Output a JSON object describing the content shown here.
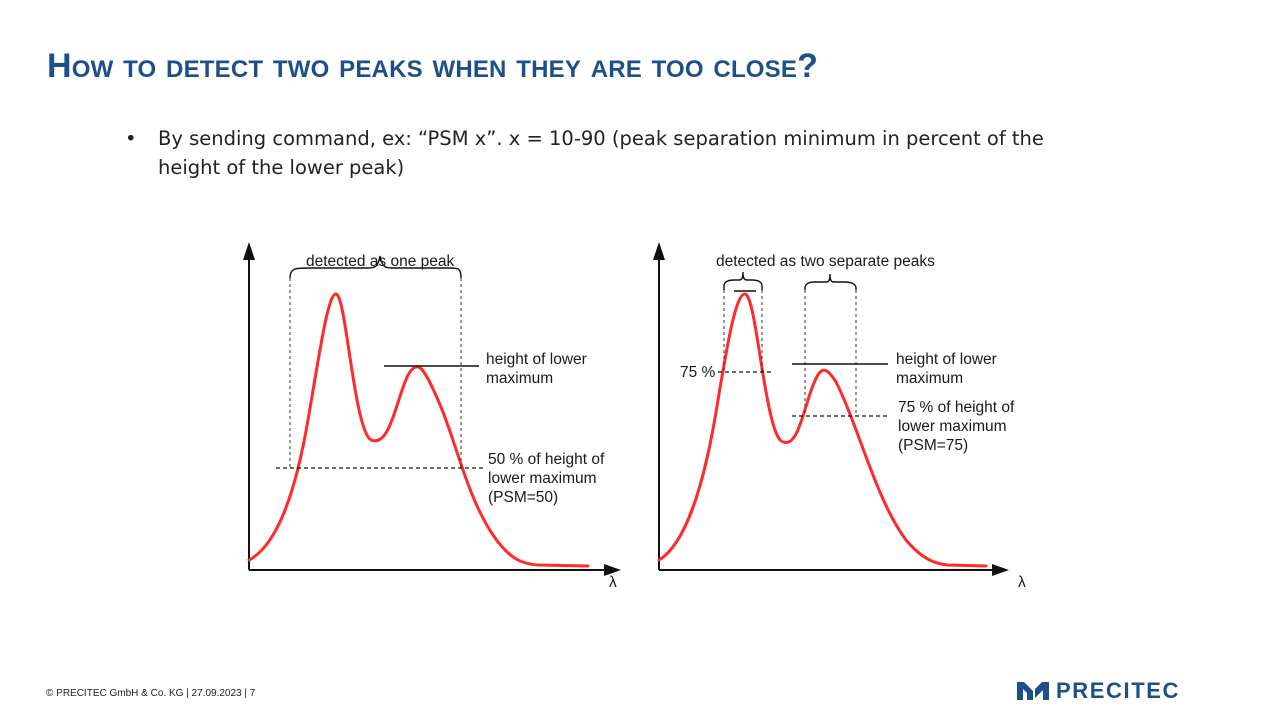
{
  "slide": {
    "title": "How to detect two peaks when they are too close?",
    "bullet": "By sending command, ex: “PSM x”. x = 10-90 (peak separation minimum in percent of the height of the lower peak)"
  },
  "diagram_left": {
    "bracket_label": "detected as one peak",
    "max_label_line1": "height of lower",
    "max_label_line2": "maximum",
    "threshold_line1": "50 % of height of",
    "threshold_line2": "lower maximum",
    "threshold_line3": "(PSM=50)",
    "axis_label": "λ"
  },
  "diagram_right": {
    "bracket_label": "detected as two separate peaks",
    "pct_label": "75 %",
    "max_label_line1": "height of lower",
    "max_label_line2": "maximum",
    "threshold_line1": "75 % of height of",
    "threshold_line2": "lower maximum",
    "threshold_line3": "(PSM=75)",
    "axis_label": "λ"
  },
  "footer": {
    "text": "© PRECITEC  GmbH  & Co. KG | 27.09.2023 | 7",
    "logo_text": "PRECITEC"
  },
  "colors": {
    "title": "#1d4f8c",
    "curve": "#ff2a2a",
    "logo": "#1d4f8c"
  }
}
